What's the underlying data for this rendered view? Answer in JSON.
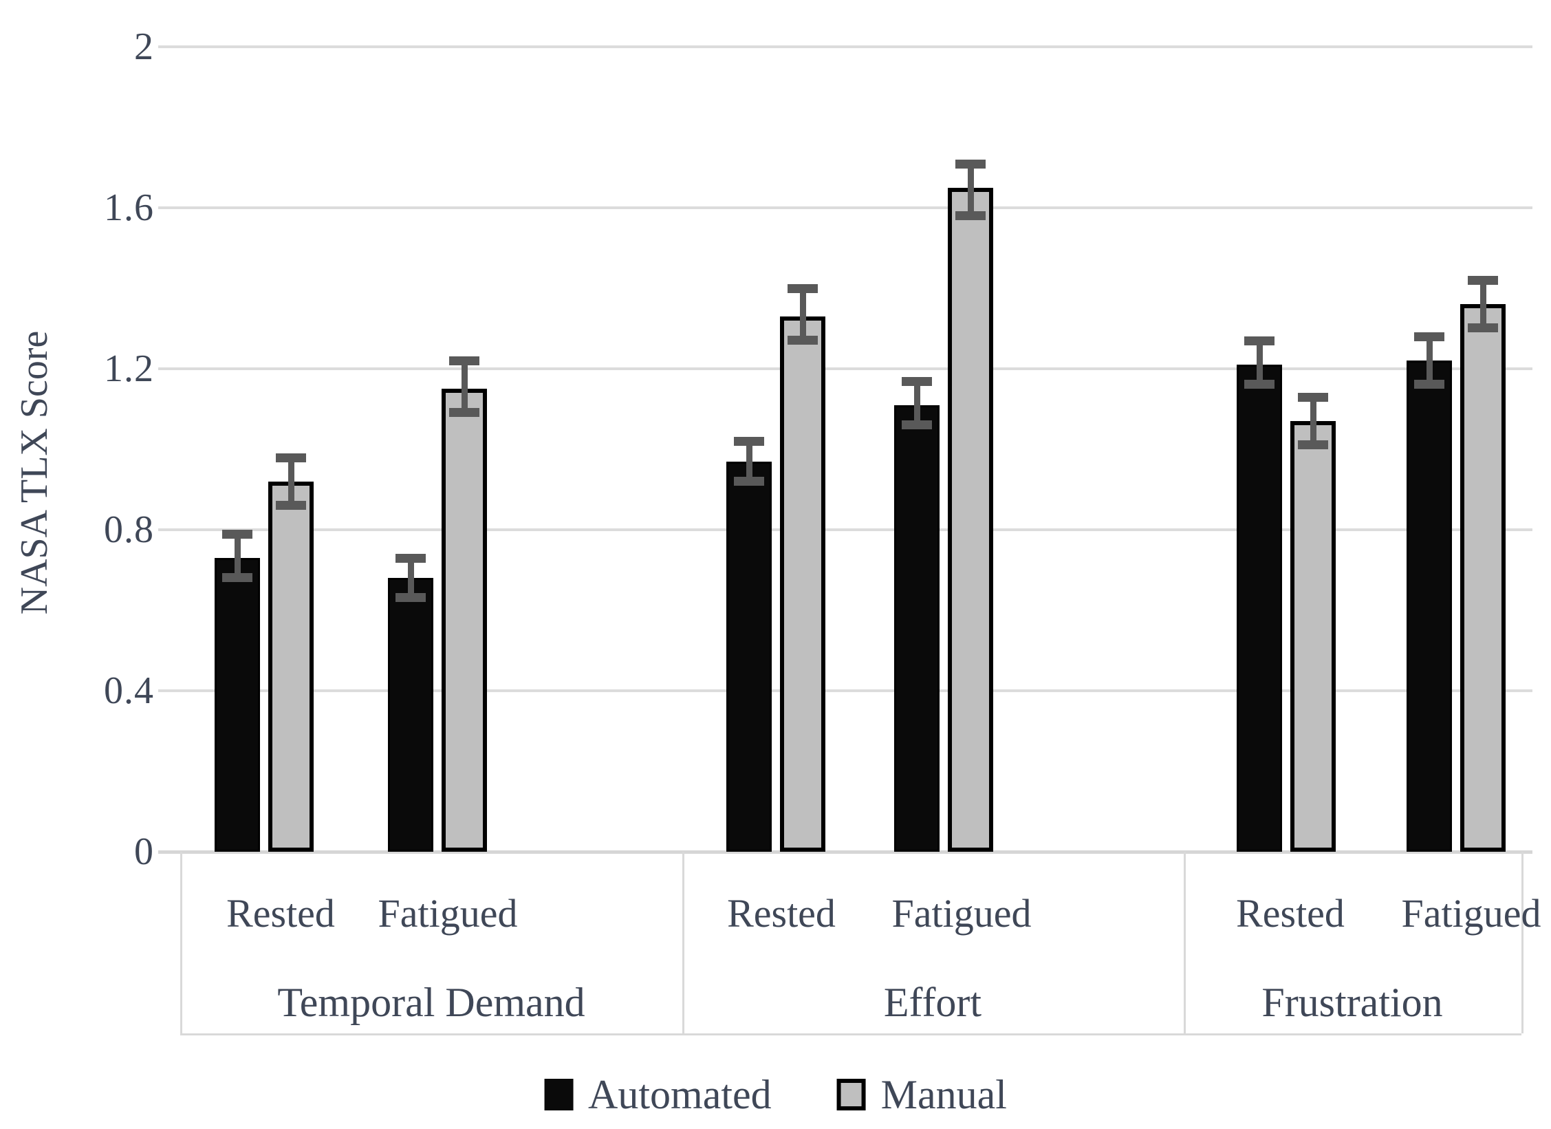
{
  "chart_data": {
    "type": "bar",
    "title": "",
    "ylabel": "NASA TLX Score",
    "xlabel": "",
    "ylim": [
      0,
      2
    ],
    "ytick_values": [
      0,
      0.4,
      0.8,
      1.2,
      1.6,
      2
    ],
    "ytick_labels": [
      "0",
      "0.4",
      "0.8",
      "1.2",
      "1.6",
      "2"
    ],
    "grid": true,
    "legend_position": "bottom-center",
    "categories": [
      "Temporal Demand",
      "Effort",
      "Frustration"
    ],
    "subcategories": [
      "Rested",
      "Fatigued"
    ],
    "cluster_labels": [
      "Rested",
      "Fatigued",
      "Rested",
      "Fatigued",
      "Rested",
      "Fatigued"
    ],
    "series": [
      {
        "name": "Automated",
        "color": "#0a0a0a",
        "values": [
          0.73,
          0.68,
          0.97,
          1.11,
          1.21,
          1.22
        ],
        "error_low": [
          0.67,
          0.62,
          0.91,
          1.05,
          1.15,
          1.15
        ],
        "error_high": [
          0.8,
          0.74,
          1.03,
          1.18,
          1.28,
          1.29
        ]
      },
      {
        "name": "Manual",
        "color": "#bfbfbf",
        "values": [
          0.92,
          1.15,
          1.33,
          1.65,
          1.07,
          1.36
        ],
        "error_low": [
          0.85,
          1.08,
          1.26,
          1.57,
          1.0,
          1.29
        ],
        "error_high": [
          0.99,
          1.23,
          1.41,
          1.72,
          1.14,
          1.43
        ]
      }
    ],
    "error_bar_color": "#595959",
    "gridline_color": "#dcdcdc",
    "text_color": "#3f4757"
  }
}
